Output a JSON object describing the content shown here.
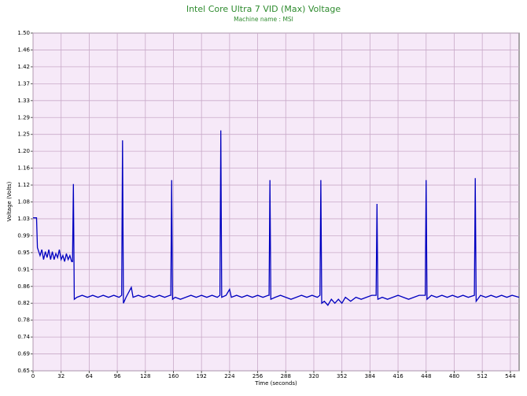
{
  "chart_data": {
    "type": "line",
    "title": "Intel Core Ultra 7 VID (Max) Voltage",
    "subtitle": "Machine name : MSI",
    "x_label": "Time (seconds)",
    "y_label": "Voltage (Volts)",
    "grid": true,
    "xlim": [
      0,
      554
    ],
    "xticks": [
      0,
      32,
      64,
      96,
      128,
      160,
      192,
      224,
      256,
      288,
      320,
      352,
      384,
      416,
      448,
      480,
      512,
      544
    ],
    "ylim": [
      0.65,
      1.5
    ],
    "yticks": [
      0.65,
      {
        "value": 0.6925,
        "label": "0.69"
      },
      {
        "value": 0.735,
        "label": "0.74"
      },
      {
        "value": 0.7775,
        "label": "0.78"
      },
      0.82,
      {
        "value": 0.8625,
        "label": "0.86"
      },
      {
        "value": 0.905,
        "label": "0.91"
      },
      {
        "value": 0.9475,
        "label": "0.95"
      },
      0.99,
      {
        "value": 1.0325,
        "label": "1.03"
      },
      {
        "value": 1.075,
        "label": "1.08"
      },
      {
        "value": 1.1175,
        "label": "1.12"
      },
      1.16,
      {
        "value": 1.2025,
        "label": "1.20"
      },
      {
        "value": 1.245,
        "label": "1.25"
      },
      {
        "value": 1.2875,
        "label": "1.29"
      },
      1.33,
      {
        "value": 1.3725,
        "label": "1.37"
      },
      {
        "value": 1.415,
        "label": "1.42"
      },
      {
        "value": 1.4575,
        "label": "1.46"
      },
      {
        "value": 1.5,
        "label": "1.50"
      }
    ],
    "x": [
      0,
      4,
      5,
      8,
      10,
      12,
      14,
      16,
      18,
      20,
      22,
      24,
      26,
      28,
      30,
      32,
      34,
      36,
      38,
      40,
      42,
      44,
      45,
      46,
      47,
      50,
      56,
      62,
      68,
      74,
      80,
      86,
      92,
      98,
      101,
      102,
      103,
      106,
      112,
      114,
      120,
      126,
      132,
      138,
      144,
      150,
      156,
      157,
      158,
      159,
      162,
      168,
      174,
      180,
      186,
      192,
      198,
      204,
      210,
      213,
      214,
      215,
      220,
      224,
      226,
      232,
      238,
      244,
      250,
      256,
      262,
      268,
      269,
      270,
      271,
      276,
      282,
      288,
      294,
      300,
      306,
      312,
      318,
      324,
      327,
      328,
      329,
      332,
      336,
      340,
      344,
      348,
      352,
      356,
      362,
      368,
      374,
      380,
      386,
      391,
      392,
      393,
      398,
      404,
      410,
      416,
      422,
      428,
      434,
      440,
      447,
      448,
      449,
      454,
      460,
      466,
      472,
      478,
      484,
      490,
      496,
      503,
      504,
      505,
      510,
      516,
      522,
      528,
      534,
      540,
      546,
      554
    ],
    "series": [
      {
        "name": "VID (Max)",
        "color": "#0000c0",
        "values": [
          1.035,
          1.035,
          0.96,
          0.94,
          0.955,
          0.93,
          0.95,
          0.935,
          0.955,
          0.93,
          0.95,
          0.93,
          0.945,
          0.935,
          0.955,
          0.93,
          0.94,
          0.925,
          0.945,
          0.93,
          0.94,
          0.925,
          0.925,
          1.12,
          0.83,
          0.835,
          0.84,
          0.835,
          0.84,
          0.835,
          0.84,
          0.835,
          0.84,
          0.835,
          0.84,
          1.23,
          0.82,
          0.835,
          0.86,
          0.835,
          0.84,
          0.835,
          0.84,
          0.835,
          0.84,
          0.835,
          0.84,
          0.84,
          1.13,
          0.83,
          0.835,
          0.83,
          0.835,
          0.84,
          0.835,
          0.84,
          0.835,
          0.84,
          0.835,
          0.84,
          1.255,
          0.835,
          0.84,
          0.855,
          0.835,
          0.84,
          0.835,
          0.84,
          0.835,
          0.84,
          0.835,
          0.84,
          0.84,
          1.13,
          0.83,
          0.835,
          0.84,
          0.835,
          0.83,
          0.835,
          0.84,
          0.835,
          0.84,
          0.835,
          0.84,
          1.13,
          0.82,
          0.825,
          0.815,
          0.83,
          0.82,
          0.83,
          0.82,
          0.835,
          0.825,
          0.835,
          0.83,
          0.835,
          0.84,
          0.84,
          1.07,
          0.83,
          0.835,
          0.83,
          0.835,
          0.84,
          0.835,
          0.83,
          0.835,
          0.84,
          0.84,
          1.13,
          0.83,
          0.84,
          0.835,
          0.84,
          0.835,
          0.84,
          0.835,
          0.84,
          0.835,
          0.84,
          1.135,
          0.825,
          0.84,
          0.835,
          0.84,
          0.835,
          0.84,
          0.835,
          0.84,
          0.835
        ]
      }
    ]
  }
}
